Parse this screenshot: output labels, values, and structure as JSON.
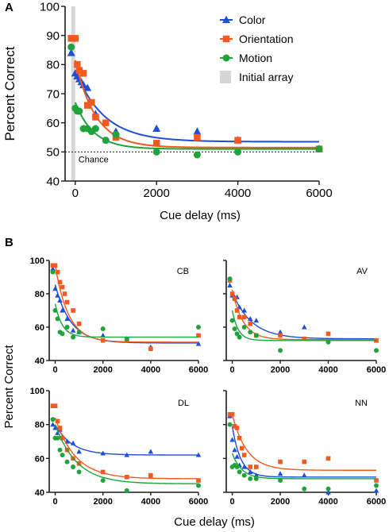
{
  "panels": {
    "A": {
      "letter": "A",
      "chance_label": "Chance",
      "legend_shade_label": "Initial array"
    },
    "B": {
      "letter": "B"
    }
  },
  "colors": {
    "Color": "#1f4fd6",
    "Orientation": "#f25a1f",
    "Motion": "#1fa33a",
    "initial_array": "#d6d6d6",
    "axis": "#1a1a1a"
  },
  "markers": {
    "Color": "triangle",
    "Orientation": "square",
    "Motion": "circle"
  },
  "chart_data": [
    {
      "id": "A",
      "type": "scatter",
      "xlabel": "Cue delay (ms)",
      "ylabel": "Percent Correct",
      "xlim": [
        -250,
        6000
      ],
      "ylim": [
        40,
        100
      ],
      "xticks": [
        0,
        2000,
        4000,
        6000
      ],
      "yticks": [
        40,
        50,
        60,
        70,
        80,
        90,
        100
      ],
      "legend_placement": "top-right",
      "chance_level": 50,
      "initial_array_range": [
        -100,
        0
      ],
      "series": [
        {
          "name": "Color",
          "x": [
            -100,
            0,
            50,
            100,
            150,
            200,
            300,
            500,
            1000,
            2000,
            3000,
            4000,
            6000
          ],
          "y": [
            84,
            77,
            76,
            75,
            74,
            73,
            72,
            63,
            57,
            58,
            57,
            54,
            51
          ],
          "fit": {
            "a": 53.5,
            "b": 24.5,
            "tau": 700
          }
        },
        {
          "name": "Orientation",
          "x": [
            -100,
            0,
            50,
            100,
            200,
            300,
            400,
            500,
            750,
            1000,
            2000,
            3000,
            4000,
            6000
          ],
          "y": [
            89,
            89,
            80,
            78,
            77,
            66,
            67,
            62,
            60,
            55,
            53,
            55,
            54,
            51
          ],
          "fit": {
            "a": 51.5,
            "b": 30,
            "tau": 500
          }
        },
        {
          "name": "Motion",
          "x": [
            -100,
            0,
            50,
            100,
            200,
            300,
            400,
            500,
            750,
            1000,
            2000,
            3000,
            4000,
            6000
          ],
          "y": [
            86,
            65,
            64,
            64,
            58,
            58,
            57,
            58,
            54,
            56,
            50,
            49,
            50,
            51
          ],
          "fit": {
            "a": 51,
            "b": 16,
            "tau": 450
          }
        }
      ]
    },
    {
      "id": "CB",
      "title": "CB",
      "type": "scatter",
      "xlim": [
        -250,
        6000
      ],
      "ylim": [
        40,
        100
      ],
      "xticks": [
        0,
        2000,
        4000,
        6000
      ],
      "yticks": [
        40,
        60,
        80,
        100
      ],
      "series": [
        {
          "name": "Color",
          "x": [
            -100,
            0,
            100,
            200,
            300,
            500,
            750,
            1000,
            2000,
            3000,
            4000,
            6000
          ],
          "y": [
            95,
            83,
            79,
            76,
            70,
            65,
            58,
            57,
            55,
            53,
            48,
            50
          ],
          "fit": {
            "a": 50.5,
            "b": 35,
            "tau": 650
          }
        },
        {
          "name": "Orientation",
          "x": [
            -100,
            0,
            100,
            200,
            300,
            400,
            500,
            750,
            1000,
            2000,
            3000,
            4000,
            6000
          ],
          "y": [
            97,
            97,
            93,
            87,
            84,
            80,
            75,
            70,
            62,
            52,
            52,
            47,
            55
          ],
          "fit": {
            "a": 51,
            "b": 46,
            "tau": 550
          }
        },
        {
          "name": "Motion",
          "x": [
            -100,
            0,
            100,
            200,
            300,
            500,
            750,
            1000,
            2000,
            3000,
            6000
          ],
          "y": [
            93,
            70,
            65,
            57,
            56,
            60,
            54,
            57,
            59,
            53,
            60
          ],
          "fit": {
            "a": 54,
            "b": 20,
            "tau": 300
          }
        }
      ]
    },
    {
      "id": "AV",
      "title": "AV",
      "type": "scatter",
      "xlim": [
        -250,
        6000
      ],
      "ylim": [
        40,
        100
      ],
      "xticks": [
        0,
        2000,
        4000,
        6000
      ],
      "yticks": [
        40,
        60,
        80,
        100
      ],
      "series": [
        {
          "name": "Color",
          "x": [
            -100,
            0,
            100,
            200,
            300,
            500,
            750,
            1000,
            2000,
            3000,
            4000,
            6000
          ],
          "y": [
            85,
            79,
            78,
            78,
            72,
            70,
            65,
            64,
            57,
            60,
            52,
            52
          ],
          "fit": {
            "a": 53,
            "b": 28,
            "tau": 800
          }
        },
        {
          "name": "Orientation",
          "x": [
            -100,
            0,
            100,
            200,
            300,
            500,
            750,
            1000,
            2000,
            3000,
            4000,
            6000
          ],
          "y": [
            88,
            80,
            77,
            70,
            66,
            66,
            62,
            55,
            55,
            53,
            56,
            52
          ],
          "fit": {
            "a": 52.5,
            "b": 30,
            "tau": 450
          }
        },
        {
          "name": "Motion",
          "x": [
            -100,
            0,
            100,
            200,
            300,
            500,
            750,
            1000,
            2000,
            4000,
            6000
          ],
          "y": [
            89,
            64,
            59,
            56,
            54,
            60,
            57,
            55,
            46,
            51,
            46
          ],
          "fit": {
            "a": 52,
            "b": 18,
            "tau": 250
          }
        }
      ]
    },
    {
      "id": "DL",
      "title": "DL",
      "type": "scatter",
      "xlim": [
        -250,
        6000
      ],
      "ylim": [
        40,
        100
      ],
      "xticks": [
        0,
        2000,
        4000,
        6000
      ],
      "yticks": [
        40,
        60,
        80,
        100
      ],
      "series": [
        {
          "name": "Color",
          "x": [
            -100,
            0,
            100,
            200,
            300,
            500,
            750,
            1000,
            2000,
            3000,
            4000,
            6000
          ],
          "y": [
            80,
            78,
            75,
            77,
            73,
            70,
            69,
            64,
            63,
            62,
            64,
            62
          ],
          "fit": {
            "a": 62,
            "b": 18,
            "tau": 700
          }
        },
        {
          "name": "Orientation",
          "x": [
            -100,
            0,
            100,
            200,
            300,
            500,
            750,
            1000,
            2000,
            3000,
            4000,
            6000
          ],
          "y": [
            91,
            91,
            82,
            78,
            72,
            65,
            60,
            57,
            52,
            49,
            50,
            47
          ],
          "fit": {
            "a": 48,
            "b": 36,
            "tau": 850
          }
        },
        {
          "name": "Motion",
          "x": [
            -100,
            0,
            100,
            200,
            300,
            500,
            750,
            1000,
            2000,
            3000,
            6000
          ],
          "y": [
            83,
            72,
            72,
            65,
            62,
            58,
            55,
            52,
            47,
            41,
            44
          ],
          "fit": {
            "a": 45,
            "b": 35,
            "tau": 900
          }
        }
      ]
    },
    {
      "id": "NN",
      "title": "NN",
      "type": "scatter",
      "xlim": [
        -250,
        6000
      ],
      "ylim": [
        40,
        100
      ],
      "xticks": [
        0,
        2000,
        4000,
        6000
      ],
      "yticks": [
        40,
        60,
        80,
        100
      ],
      "series": [
        {
          "name": "Color",
          "x": [
            -100,
            0,
            100,
            200,
            300,
            500,
            750,
            1000,
            2000,
            3000,
            4000,
            6000
          ],
          "y": [
            85,
            71,
            65,
            61,
            56,
            55,
            52,
            50,
            51,
            50,
            40,
            41
          ],
          "fit": {
            "a": 49,
            "b": 30,
            "tau": 350
          }
        },
        {
          "name": "Orientation",
          "x": [
            -100,
            0,
            100,
            200,
            300,
            400,
            500,
            750,
            1000,
            2000,
            3000,
            4000,
            6000
          ],
          "y": [
            86,
            86,
            79,
            78,
            72,
            66,
            62,
            55,
            55,
            58,
            58,
            60,
            47
          ],
          "fit": {
            "a": 53,
            "b": 33,
            "tau": 600
          }
        },
        {
          "name": "Motion",
          "x": [
            -100,
            0,
            100,
            200,
            300,
            500,
            750,
            1000,
            2000,
            3000,
            4000,
            6000
          ],
          "y": [
            80,
            55,
            56,
            55,
            52,
            50,
            48,
            48,
            47,
            42,
            42,
            44
          ],
          "fit": {
            "a": 48,
            "b": 15,
            "tau": 400
          }
        }
      ]
    }
  ],
  "figure_text": {
    "b_ylabel": "Percent Correct",
    "b_xlabel": "Cue delay (ms)"
  }
}
